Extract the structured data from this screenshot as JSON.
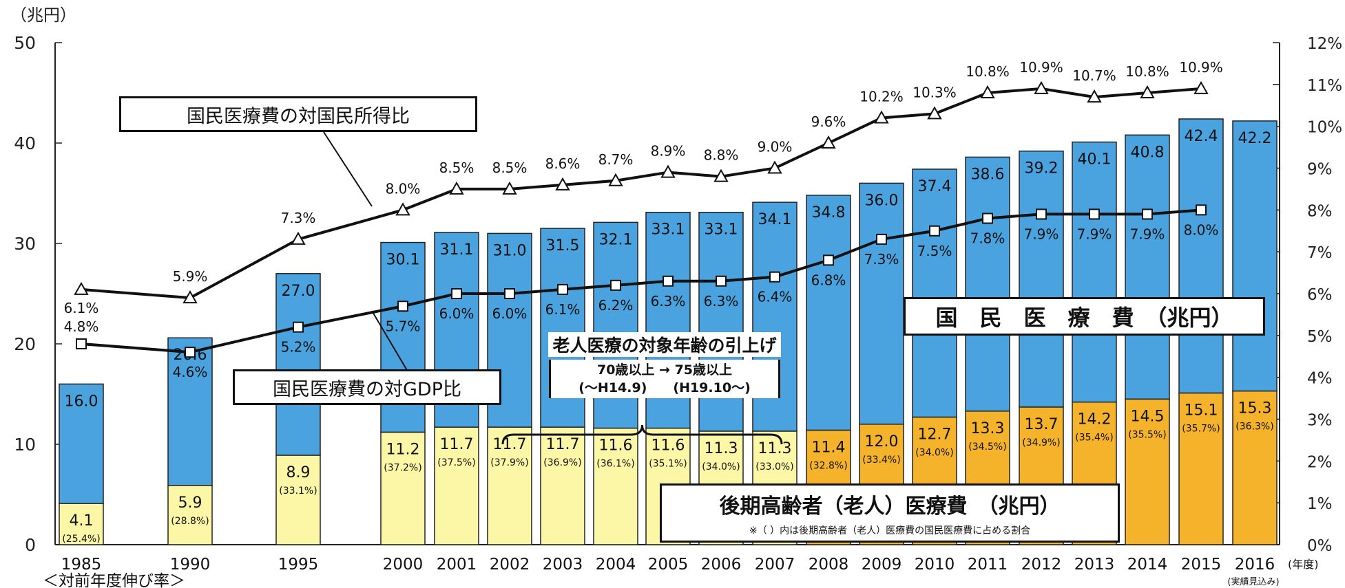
{
  "chart_data": {
    "type": "bar",
    "categories": [
      "1985",
      "1990",
      "1995",
      "2000",
      "2001",
      "2002",
      "2003",
      "2004",
      "2005",
      "2006",
      "2007",
      "2008",
      "2009",
      "2010",
      "2011",
      "2012",
      "2013",
      "2014",
      "2015",
      "2016"
    ],
    "x_note": "(実績見込み)",
    "y_left": {
      "unit_label": "（兆円）",
      "ticks": [
        "0",
        "10",
        "20",
        "30",
        "40",
        "50"
      ],
      "ylim": [
        0,
        50
      ]
    },
    "y_right": {
      "ticks": [
        "0%",
        "1%",
        "2%",
        "3%",
        "4%",
        "5%",
        "6%",
        "7%",
        "8%",
        "9%",
        "10%",
        "11%",
        "12%"
      ],
      "ylim": [
        0,
        12
      ]
    },
    "x_unit": "(年度)",
    "growth_label": "＜対前年度伸び率＞",
    "series": [
      {
        "name": "国民医療費（兆円）",
        "kind": "bar-total",
        "color": "#4aa3df",
        "values": [
          16.0,
          20.6,
          27.0,
          30.1,
          31.1,
          31.0,
          31.5,
          32.1,
          33.1,
          33.1,
          34.1,
          34.8,
          36.0,
          37.4,
          38.6,
          39.2,
          40.1,
          40.8,
          42.4,
          42.2
        ],
        "labels": [
          "16.0",
          "20.6",
          "27.0",
          "30.1",
          "31.1",
          "31.0",
          "31.5",
          "32.1",
          "33.1",
          "33.1",
          "34.1",
          "34.8",
          "36.0",
          "37.4",
          "38.6",
          "39.2",
          "40.1",
          "40.8",
          "42.4",
          "42.2"
        ]
      },
      {
        "name": "後期高齢者（老人）医療費（兆円）",
        "kind": "bar-part",
        "colors_by_category": [
          "#fbf7a6",
          "#fbf7a6",
          "#fbf7a6",
          "#fbf7a6",
          "#fbf7a6",
          "#fbf7a6",
          "#fbf7a6",
          "#fbf7a6",
          "#fbf7a6",
          "#fbf7a6",
          "#fbf7a6",
          "#f4b32a",
          "#f4b32a",
          "#f4b32a",
          "#f4b32a",
          "#f4b32a",
          "#f4b32a",
          "#f4b32a",
          "#f4b32a",
          "#f4b32a"
        ],
        "values": [
          4.1,
          5.9,
          8.9,
          11.2,
          11.7,
          11.7,
          11.7,
          11.6,
          11.6,
          11.3,
          11.3,
          11.4,
          12.0,
          12.7,
          13.3,
          13.7,
          14.2,
          14.5,
          15.1,
          15.3
        ],
        "labels": [
          "4.1",
          "5.9",
          "8.9",
          "11.2",
          "11.7",
          "11.7",
          "11.7",
          "11.6",
          "11.6",
          "11.3",
          "11.3",
          "11.4",
          "12.0",
          "12.7",
          "13.3",
          "13.7",
          "14.2",
          "14.5",
          "15.1",
          "15.3"
        ],
        "share_labels": [
          "(25.4%)",
          "(28.8%)",
          "(33.1%)",
          "(37.2%)",
          "(37.5%)",
          "(37.9%)",
          "(36.9%)",
          "(36.1%)",
          "(35.1%)",
          "(34.0%)",
          "(33.0%)",
          "(32.8%)",
          "(33.4%)",
          "(34.0%)",
          "(34.5%)",
          "(34.9%)",
          "(35.4%)",
          "(35.5%)",
          "(35.7%)",
          "(36.3%)"
        ]
      },
      {
        "name": "国民医療費の対国民所得比",
        "kind": "line-triangle",
        "values": [
          6.1,
          5.9,
          7.3,
          8.0,
          8.5,
          8.5,
          8.6,
          8.7,
          8.9,
          8.8,
          9.0,
          9.6,
          10.2,
          10.3,
          10.8,
          10.9,
          10.7,
          10.8,
          10.9,
          null
        ],
        "labels": [
          "6.1%",
          "5.9%",
          "7.3%",
          "8.0%",
          "8.5%",
          "8.5%",
          "8.6%",
          "8.7%",
          "8.9%",
          "8.8%",
          "9.0%",
          "9.6%",
          "10.2%",
          "10.3%",
          "10.8%",
          "10.9%",
          "10.7%",
          "10.8%",
          "10.9%",
          ""
        ]
      },
      {
        "name": "国民医療費の対GDP比",
        "kind": "line-square",
        "values": [
          4.8,
          4.6,
          5.2,
          5.7,
          6.0,
          6.0,
          6.1,
          6.2,
          6.3,
          6.3,
          6.4,
          6.8,
          7.3,
          7.5,
          7.8,
          7.9,
          7.9,
          7.9,
          8.0,
          null
        ],
        "labels": [
          "4.8%",
          "4.6%",
          "5.2%",
          "5.7%",
          "6.0%",
          "6.0%",
          "6.1%",
          "6.2%",
          "6.3%",
          "6.3%",
          "6.4%",
          "6.8%",
          "7.3%",
          "7.5%",
          "7.8%",
          "7.9%",
          "7.9%",
          "7.9%",
          "8.0%",
          ""
        ]
      }
    ]
  },
  "callouts": {
    "income_ratio": "国民医療費の対国民所得比",
    "gdp_ratio": "国民医療費の対GDP比",
    "national_cost": "国　民　医　療　費　（兆円）",
    "elderly_cost": "後期高齢者（老人）医療費　（兆円）",
    "elderly_note": "※（ ）内は後期高齢者（老人）医療費の国民医療費に占める割合",
    "age_change_title": "老人医療の対象年齢の引上げ",
    "age_change_line1": "70歳以上 → 75歳以上",
    "age_change_line2": "(～H14.9)　　(H19.10～)"
  }
}
